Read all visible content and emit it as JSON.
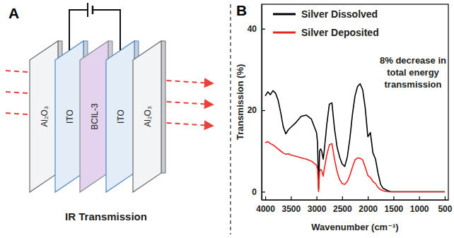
{
  "panel_labels": [
    "A",
    "B"
  ],
  "diagram": {
    "layers": [
      "Al₂O₃",
      "ITO",
      "BCIL-3",
      "ITO",
      "Al₂O₃"
    ],
    "caption": "IR Transmission"
  },
  "chart_data": {
    "type": "line",
    "x": [
      4000,
      3950,
      3900,
      3850,
      3800,
      3750,
      3700,
      3650,
      3600,
      3550,
      3500,
      3400,
      3300,
      3200,
      3100,
      3000,
      2980,
      2960,
      2940,
      2920,
      2900,
      2870,
      2850,
      2800,
      2750,
      2700,
      2650,
      2600,
      2550,
      2500,
      2450,
      2400,
      2350,
      2300,
      2250,
      2200,
      2150,
      2100,
      2050,
      2000,
      1950,
      1900,
      1850,
      1800,
      1750,
      1700,
      1650,
      1600,
      1550,
      1500,
      1400,
      1200,
      1000,
      800,
      600,
      500
    ],
    "series": [
      {
        "name": "Silver Dissolved",
        "color": "#000000",
        "values": [
          23.5,
          24.5,
          23.8,
          24.8,
          24.2,
          22.5,
          19.5,
          16,
          14.2,
          15.2,
          15.8,
          17,
          18.5,
          18.8,
          17.8,
          14.5,
          12,
          0.5,
          10,
          10.5,
          10,
          8,
          10,
          16.5,
          21.5,
          21.8,
          15.5,
          11,
          8.5,
          6.8,
          6.2,
          8.5,
          13,
          19,
          23.5,
          25.8,
          26.5,
          25,
          20.5,
          13.5,
          14.5,
          9.5,
          8,
          4.5,
          1.8,
          0.8,
          0.5,
          0.2,
          0,
          0,
          0,
          0,
          0,
          0,
          0,
          0
        ]
      },
      {
        "name": "Silver Deposited",
        "color": "#e8251e",
        "values": [
          12,
          12.3,
          11.8,
          11.5,
          11,
          10.5,
          10,
          9.5,
          9.2,
          9.3,
          9,
          8.7,
          8.3,
          8,
          7.5,
          6.5,
          5.5,
          0,
          5,
          5.5,
          5.2,
          3.8,
          5.5,
          9,
          11.5,
          11.8,
          8,
          5,
          3,
          2,
          1.8,
          2.5,
          4,
          6,
          7.8,
          8.3,
          8.2,
          7.8,
          6,
          4,
          3.5,
          2.5,
          2,
          1,
          0.5,
          0.2,
          0.1,
          0,
          0,
          0,
          0,
          0,
          0,
          0,
          0,
          0
        ]
      }
    ],
    "xlim": [
      4070,
      430
    ],
    "xticks": [
      4000,
      3500,
      3000,
      2500,
      2000,
      1500,
      1000,
      500
    ],
    "ylim": [
      -2,
      46
    ],
    "yticks": [
      0,
      20,
      40
    ],
    "xlabel": "Wavenumber (cm⁻¹)",
    "ylabel": "Transmission (%)",
    "annotations": [
      "8% decrease in",
      "total energy",
      "transmission"
    ],
    "legend": "upper left",
    "grid": false
  }
}
